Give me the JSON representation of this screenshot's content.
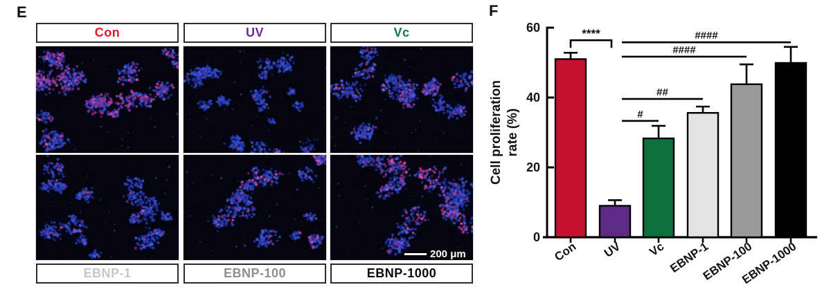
{
  "panelE": {
    "label": "E",
    "top_labels": [
      {
        "text": "Con",
        "color": "#e3172c"
      },
      {
        "text": "UV",
        "color": "#6e2d96"
      },
      {
        "text": "Vc",
        "color": "#157a3e"
      }
    ],
    "bottom_labels": [
      {
        "text": "EBNP-1",
        "color": "#c7c7c7"
      },
      {
        "text": "EBNP-100",
        "color": "#8e8e8e"
      },
      {
        "text": "EBNP-1000",
        "color": "#0a0a0a"
      }
    ],
    "scale_bar_text": "200 μm",
    "micrographs": [
      {
        "name": "Con",
        "clusters": 12,
        "pink": 0.3,
        "singles": 30,
        "seed": 3,
        "rscale": 1.05,
        "dim": 1.0
      },
      {
        "name": "UV",
        "clusters": 12,
        "pink": 0.04,
        "singles": 45,
        "seed": 7,
        "rscale": 0.8,
        "dim": 0.82
      },
      {
        "name": "Vc",
        "clusters": 11,
        "pink": 0.12,
        "singles": 35,
        "seed": 5,
        "rscale": 0.95,
        "dim": 0.95
      },
      {
        "name": "EBNP-1",
        "clusters": 11,
        "pink": 0.08,
        "singles": 35,
        "seed": 9,
        "rscale": 0.95,
        "dim": 0.9
      },
      {
        "name": "EBNP-100",
        "clusters": 11,
        "pink": 0.14,
        "singles": 32,
        "seed": 13,
        "rscale": 1.0,
        "dim": 0.95
      },
      {
        "name": "EBNP-1000",
        "clusters": 11,
        "pink": 0.3,
        "singles": 28,
        "seed": 17,
        "rscale": 1.2,
        "dim": 1.0
      }
    ]
  },
  "panelF": {
    "label": "F"
  },
  "chart_data": {
    "type": "bar",
    "categories": [
      "Con",
      "UV",
      "Vc",
      "EBNP-1",
      "EBNP-100",
      "EBNP-1000"
    ],
    "values": [
      51,
      9,
      28.3,
      35.6,
      43.8,
      49.9
    ],
    "errors": [
      1.8,
      1.6,
      3.6,
      1.8,
      5.7,
      4.6
    ],
    "bar_colors": [
      "#c41230",
      "#5f2a87",
      "#0e6f3f",
      "#e3e3e3",
      "#9a9a9a",
      "#000000"
    ],
    "title": "",
    "xlabel": "",
    "ylabel_lines": [
      "Cell proliferation",
      "rate (%)"
    ],
    "yticks": [
      0,
      20,
      40,
      60
    ],
    "ylim": [
      0,
      60
    ],
    "grid": false,
    "legend": false,
    "significance": [
      {
        "from": "Con",
        "to": "UV",
        "y": 56.4,
        "label": "****",
        "style": "bracket"
      },
      {
        "from": "UV",
        "to": "Vc",
        "y": 33.3,
        "label": "#",
        "style": "line"
      },
      {
        "from": "UV",
        "to": "EBNP-1",
        "y": 39.6,
        "label": "##",
        "style": "line"
      },
      {
        "from": "UV",
        "to": "EBNP-100",
        "y": 51.7,
        "label": "####",
        "style": "line"
      },
      {
        "from": "UV",
        "to": "EBNP-1000",
        "y": 55.8,
        "label": "####",
        "style": "line"
      }
    ]
  }
}
